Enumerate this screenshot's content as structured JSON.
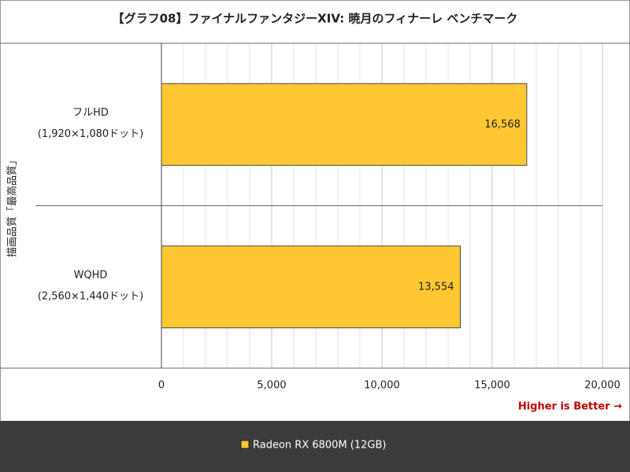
{
  "chart_data": {
    "type": "bar",
    "orientation": "horizontal",
    "title": "【グラフ08】ファイナルファンタジーXIV: 暁月のフィナーレ ベンチマーク",
    "y_label": "描画品質「最高品質」",
    "categories": [
      [
        "フルHD",
        "(1,920×1,080ドット)"
      ],
      [
        "WQHD",
        "(2,560×1,440ドット)"
      ]
    ],
    "series": [
      {
        "name": "Radeon RX 6800M (12GB)",
        "color": "#ffc832",
        "values": [
          16568,
          13554
        ],
        "value_labels": [
          "16,568",
          "13,554"
        ]
      }
    ],
    "xlim": [
      0,
      20000
    ],
    "xticks": [
      0,
      {
        "value": 5000,
        "label": "5,000"
      },
      {
        "value": 10000,
        "label": "10,000"
      },
      {
        "value": 15000,
        "label": "15,000"
      },
      {
        "value": 20000,
        "label": "20,000"
      }
    ],
    "minor_xticks": [
      1000,
      2000,
      3000,
      4000,
      6000,
      7000,
      8000,
      9000,
      11000,
      12000,
      13000,
      14000,
      16000,
      17000,
      18000,
      19000
    ],
    "grid": true,
    "annotation": "Higher is Better →",
    "legend": "bottom"
  }
}
